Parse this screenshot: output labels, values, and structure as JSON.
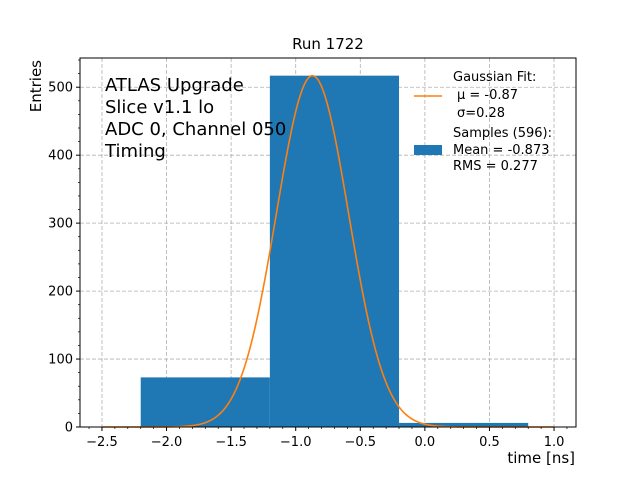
{
  "chart_data": {
    "type": "bar",
    "title": "Run 1722",
    "xlabel": "time [ns]",
    "ylabel": "Entries",
    "xlim": [
      -2.67,
      1.17
    ],
    "ylim": [
      0,
      543
    ],
    "grid": true,
    "grid_style": "dashed",
    "legend_position": "top-right",
    "xticks": [
      -2.5,
      -2.0,
      -1.5,
      -1.0,
      -0.5,
      0.0,
      0.5,
      1.0
    ],
    "xtick_labels": [
      "−2.5",
      "−2.0",
      "−1.5",
      "−1.0",
      "−0.5",
      "0.0",
      "0.5",
      "1.0"
    ],
    "yticks": [
      0,
      100,
      200,
      300,
      400,
      500
    ],
    "ytick_labels": [
      "0",
      "100",
      "200",
      "300",
      "400",
      "500"
    ],
    "bins": [
      {
        "x0": -2.2,
        "x1": -1.2,
        "value": 73
      },
      {
        "x0": -1.2,
        "x1": -0.2,
        "value": 517
      },
      {
        "x0": -0.2,
        "x1": 0.8,
        "value": 6
      }
    ],
    "fit": {
      "type": "gaussian",
      "mu": -0.87,
      "sigma": 0.28,
      "amplitude": 517,
      "x_range": [
        -2.5,
        1.0
      ]
    },
    "annotation_lines": [
      "ATLAS Upgrade",
      "Slice v1.1 lo",
      "ADC 0, Channel 050",
      "Timing"
    ],
    "legend": {
      "fit_lines": [
        "Gaussian Fit:",
        "μ = -0.87",
        "σ=0.28"
      ],
      "hist_lines": [
        "Samples (596):",
        "Mean = -0.873",
        "RMS = 0.277"
      ]
    },
    "colors": {
      "bar": "#1f77b4",
      "fit": "#ff7f0e",
      "grid": "#b0b0b0"
    }
  }
}
